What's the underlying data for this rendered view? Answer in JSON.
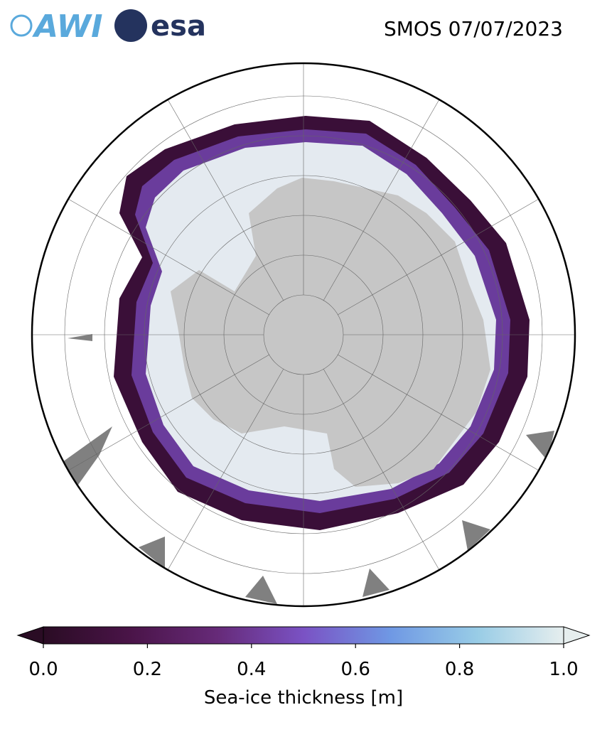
{
  "header": {
    "logos": [
      "AWI",
      "esa"
    ],
    "title": "SMOS 07/07/2023"
  },
  "colorbar": {
    "label": "Sea-ice thickness [m]",
    "lim": [
      0,
      1
    ],
    "ticks": [
      {
        "value": 0,
        "label": "0.0"
      },
      0.2,
      0.4,
      0.6,
      0.8,
      {
        "value": 1,
        "label": "1.0"
      }
    ],
    "colors": [
      "#2a0c24",
      "#4a1448",
      "#662a78",
      "#7a52c4",
      "#6f98e4",
      "#98cce6",
      "#e6eeee"
    ],
    "extend": "both"
  }
}
